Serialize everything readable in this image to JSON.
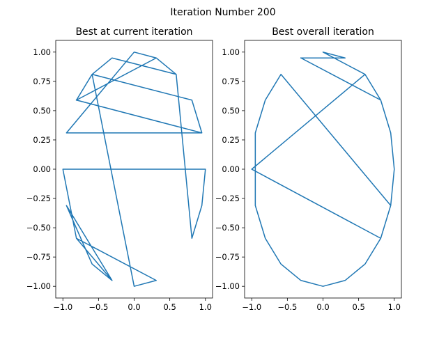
{
  "figure": {
    "suptitle": "Iteration Number 200",
    "line_color": "#1f77b4"
  },
  "chart_data": [
    {
      "type": "line",
      "title": "Best at current iteration",
      "xlabel": "",
      "ylabel": "",
      "xlim": [
        -1.1,
        1.1
      ],
      "ylim": [
        -1.1,
        1.1
      ],
      "xticks": [
        -1.0,
        -0.5,
        0.0,
        0.5,
        1.0
      ],
      "xtick_labels": [
        "−1.0",
        "−0.5",
        "0.0",
        "0.5",
        "1.0"
      ],
      "yticks": [
        1.0,
        0.75,
        0.5,
        0.25,
        0.0,
        -0.25,
        -0.5,
        -0.75,
        -1.0
      ],
      "ytick_labels": [
        "1.00",
        "0.75",
        "0.50",
        "0.25",
        "0.00",
        "−0.25",
        "−0.50",
        "−0.75",
        "−1.00"
      ],
      "grid": false,
      "series": [
        {
          "x": [
            -0.81,
            0.95,
            -0.95,
            0.0,
            0.31,
            0.59,
            0.81,
            0.95,
            1.0,
            -1.0,
            -0.81,
            -0.31,
            -0.95,
            -0.59,
            -0.31,
            -0.81,
            0.31,
            0.0,
            -0.59,
            -0.81,
            0.95,
            0.81,
            -0.59,
            -0.31,
            0.59,
            0.31,
            -0.81
          ],
          "y": [
            0.59,
            0.31,
            0.31,
            1.0,
            0.95,
            0.81,
            -0.59,
            -0.31,
            0.0,
            0.0,
            -0.59,
            -0.95,
            -0.31,
            -0.81,
            -0.95,
            -0.59,
            -0.95,
            -1.0,
            0.81,
            0.59,
            0.31,
            0.59,
            0.81,
            0.95,
            0.81,
            0.95,
            0.59
          ]
        }
      ]
    },
    {
      "type": "line",
      "title": "Best overall iteration",
      "xlabel": "",
      "ylabel": "",
      "xlim": [
        -1.1,
        1.1
      ],
      "ylim": [
        -1.1,
        1.1
      ],
      "xticks": [
        -1.0,
        -0.5,
        0.0,
        0.5,
        1.0
      ],
      "xtick_labels": [
        "−1.0",
        "−0.5",
        "0.0",
        "0.5",
        "1.0"
      ],
      "yticks": [
        1.0,
        0.75,
        0.5,
        0.25,
        0.0,
        -0.25,
        -0.5,
        -0.75,
        -1.0
      ],
      "ytick_labels": [
        "1.00",
        "0.75",
        "0.50",
        "0.25",
        "0.00",
        "−0.25",
        "−0.50",
        "−0.75",
        "−1.00"
      ],
      "grid": false,
      "series": [
        {
          "x": [
            -0.31,
            0.31,
            0.0,
            0.59,
            0.81,
            0.95,
            1.0,
            0.95,
            0.81,
            0.59,
            0.31,
            0.0,
            -0.31,
            -0.59,
            -0.81,
            -0.95,
            -0.95,
            -0.81,
            -0.59,
            0.95,
            0.81,
            -1.0,
            0.59,
            0.81,
            -0.31
          ],
          "y": [
            0.95,
            0.95,
            1.0,
            0.81,
            0.59,
            0.31,
            0.0,
            -0.31,
            -0.59,
            -0.81,
            -0.95,
            -1.0,
            -0.95,
            -0.81,
            -0.59,
            -0.31,
            0.31,
            0.59,
            0.81,
            -0.31,
            -0.59,
            0.0,
            0.81,
            0.59,
            0.95
          ]
        }
      ]
    }
  ]
}
